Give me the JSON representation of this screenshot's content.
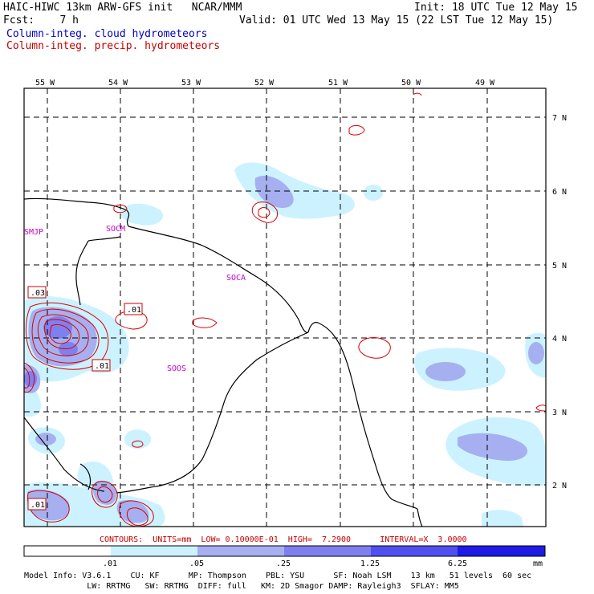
{
  "header": {
    "line1_left": "HAIC-HIWC 13km ARW-GFS init   NCAR/MMM",
    "line1_right": "Init: 18 UTC Tue 12 May 15",
    "line2_left": "Fcst:    7 h",
    "line2_right": "Valid: 01 UTC Wed 13 May 15 (22 LST Tue 12 May 15)",
    "legend_cloud": "Column-integ. cloud hydrometeors",
    "legend_precip": "Column-integ. precip. hydrometeors"
  },
  "map": {
    "lon_labels": [
      "55 W",
      "54 W",
      "53 W",
      "52 W",
      "51 W",
      "50 W",
      "49 W"
    ],
    "lat_labels": [
      "7 N",
      "6 N",
      "5 N",
      "4 N",
      "3 N",
      "2 N"
    ],
    "stations": [
      "SMJP",
      "SOCM",
      "SOCA",
      "SOOS"
    ],
    "contour_labels": [
      ".03",
      ".01",
      ".01",
      ".01"
    ]
  },
  "footer": {
    "contours_line": "CONTOURS:  UNITS=mm  LOW= 0.10000E-01  HIGH=  7.2900      INTERVAL=X  3.0000",
    "colorbar_ticks": [
      ".01",
      ".05",
      ".25",
      "1.25",
      "6.25"
    ],
    "colorbar_unit": "mm",
    "colorbar_colors": [
      "#ffffff",
      "#ccf2ff",
      "#a6b0f0",
      "#7f80f0",
      "#5050f0",
      "#1c1ce6"
    ],
    "model_info_1": "Model Info: V3.6.1    CU: KF      MP: Thompson    PBL: YSU      SF: Noah LSM    13 km   51 levels  60 sec",
    "model_info_2": "             LW: RRTMG   SW: RRTMG  DIFF: full   KM: 2D Smagor DAMP: Rayleigh3  SFLAY: MM5"
  }
}
